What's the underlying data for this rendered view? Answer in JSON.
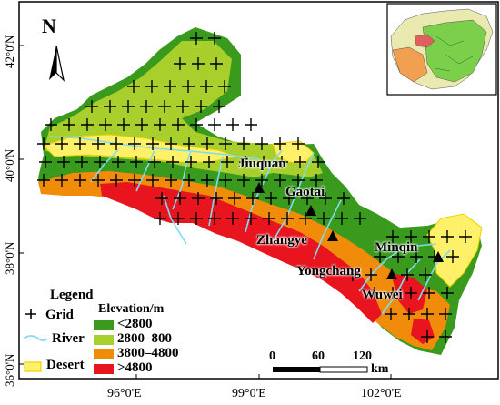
{
  "map": {
    "north_label": "N",
    "lat_labels": [
      "42°0'N",
      "40°0'N",
      "38°0'N",
      "36°0'N"
    ],
    "lon_labels": [
      "96°0'E",
      "99°0'E",
      "102°0'E"
    ],
    "cities": [
      {
        "name": "Jiuquan"
      },
      {
        "name": "Gaotai"
      },
      {
        "name": "Zhangye"
      },
      {
        "name": "Minqin"
      },
      {
        "name": "Yongchang"
      },
      {
        "name": "Wuwei"
      }
    ],
    "legend": {
      "title": "Legend",
      "grid": "Grid",
      "river": "River",
      "desert": "Desert",
      "elevation_title": "Elevation/m",
      "classes": [
        {
          "label": "<2800",
          "color": "#3a9a1e"
        },
        {
          "label": "2800–800",
          "color": "#a8cf2c"
        },
        {
          "label": "3800–4800",
          "color": "#f08c0a"
        },
        {
          "label": ">4800",
          "color": "#e8141e"
        }
      ]
    },
    "scale": {
      "ticks": [
        "0",
        "60",
        "120"
      ],
      "unit": "km"
    },
    "colors": {
      "low": "#3a9a1e",
      "mid": "#a8cf2c",
      "high": "#f08c0a",
      "top": "#e8141e",
      "river": "#7fdcf0",
      "desert": "#fff06a",
      "desert_edge": "#f0d000"
    }
  }
}
